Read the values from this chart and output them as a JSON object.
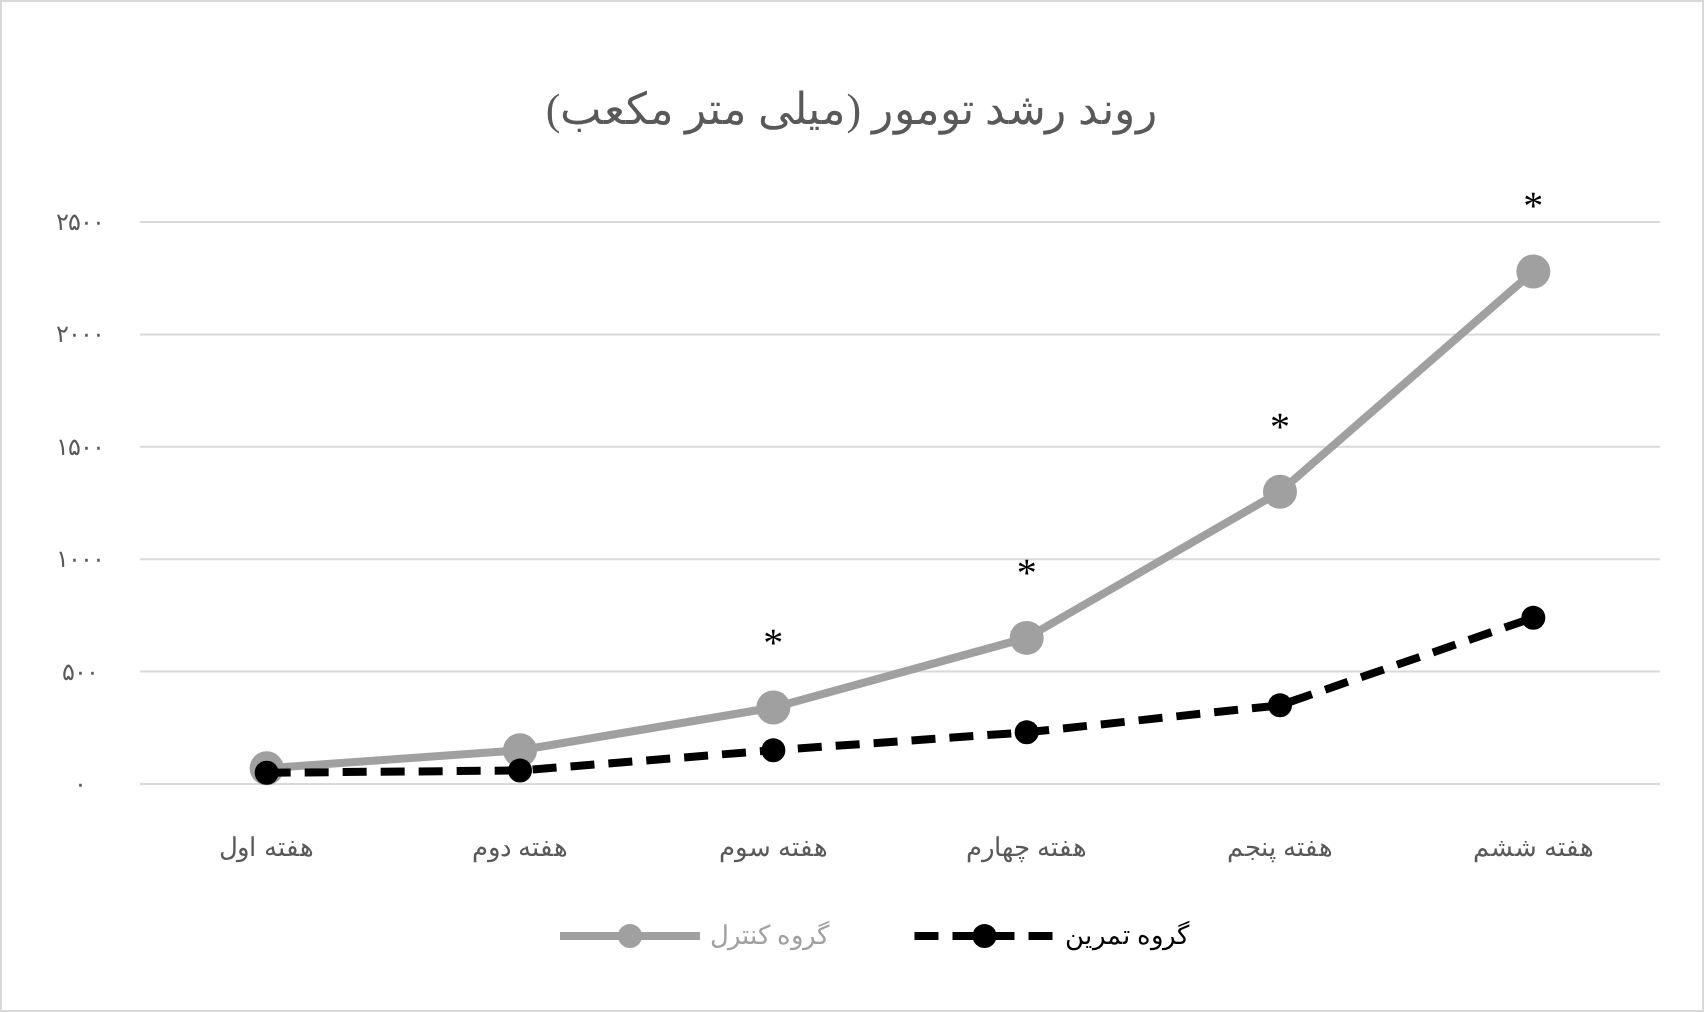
{
  "chart_data": {
    "type": "line",
    "title": "روند رشد تومور (میلی متر مکعب)",
    "categories": [
      "هفته اول",
      "هفته دوم",
      "هفته سوم",
      "هفته چهارم",
      "هفته پنجم",
      "هفته ششم"
    ],
    "series": [
      {
        "name": "گروه کنترل",
        "color": "#a0a0a0",
        "line_style": "solid",
        "values": [
          70,
          150,
          340,
          650,
          1300,
          2280
        ]
      },
      {
        "name": "گروه تمرین",
        "color": "#000000",
        "line_style": "dashed",
        "values": [
          50,
          60,
          150,
          230,
          350,
          740
        ]
      }
    ],
    "ylim": [
      0,
      2500
    ],
    "yticks": [
      {
        "value": 0,
        "label": "۰"
      },
      {
        "value": 500,
        "label": "۵۰۰"
      },
      {
        "value": 1000,
        "label": "۱۰۰۰"
      },
      {
        "value": 1500,
        "label": "۱۵۰۰"
      },
      {
        "value": 2000,
        "label": "۲۰۰۰"
      },
      {
        "value": 2500,
        "label": "۲۵۰۰"
      }
    ],
    "annotations": [
      {
        "text": "*",
        "x": "هفته سوم",
        "y": 340
      },
      {
        "text": "*",
        "x": "هفته چهارم",
        "y": 650
      },
      {
        "text": "*",
        "x": "هفته پنجم",
        "y": 1300
      },
      {
        "text": "*",
        "x": "هفته ششم",
        "y": 2280
      }
    ],
    "grid": "y",
    "legend": "bottom",
    "marker": "circle"
  }
}
